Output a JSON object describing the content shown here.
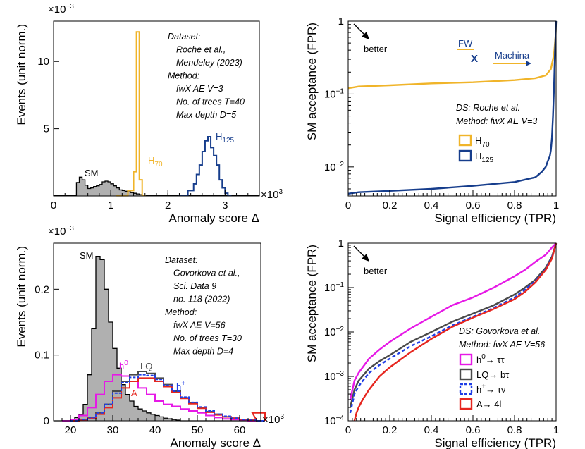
{
  "chart_data": [
    {
      "type": "histogram",
      "panel": "top-left",
      "exponent_label": "×10",
      "exponent_sup": "−3",
      "xscale_label": "×10",
      "xscale_sup": "3",
      "xlabel": "Anomaly score Δ",
      "ylabel": "Events (unit norm.)",
      "xlim": [
        0,
        3.6
      ],
      "ylim": [
        0,
        13
      ],
      "xticks": [
        "0",
        "1",
        "2",
        "3"
      ],
      "yticks": [
        "5",
        "10"
      ],
      "xtick_values": [
        0,
        1,
        2,
        3
      ],
      "ytick_values": [
        5,
        10
      ],
      "annotations": [
        "Dataset:",
        "Roche et al.,",
        "Mendeley (2023)",
        "Method:",
        "fwX AE V=3",
        "No. of trees T=40",
        "Max depth D=5"
      ],
      "series": [
        {
          "name": "SM",
          "label": "SM",
          "color": "#000000",
          "fill": "#b0b0b0",
          "edges": [
            0.0,
            0.4,
            0.45,
            0.5,
            0.55,
            0.6,
            0.65,
            0.7,
            0.75,
            0.8,
            0.85,
            0.9,
            0.95,
            1.0,
            1.05,
            1.1,
            1.15,
            1.2,
            1.25,
            1.3,
            1.35,
            1.4,
            1.45,
            1.5,
            1.55,
            3.6
          ],
          "values": [
            0.05,
            1.0,
            1.4,
            1.2,
            0.8,
            0.55,
            0.6,
            0.7,
            0.75,
            0.85,
            1.05,
            1.1,
            1.05,
            0.9,
            0.75,
            0.6,
            0.45,
            0.4,
            0.35,
            0.3,
            0.25,
            0.2,
            0.15,
            0.1,
            0.02
          ]
        },
        {
          "name": "H70",
          "label": "H",
          "sub": "70",
          "color": "#f0b429",
          "edges": [
            1.1,
            1.3,
            1.4,
            1.45,
            1.5,
            1.55,
            1.6
          ],
          "values": [
            0.02,
            0.4,
            1.8,
            12.2,
            1.2,
            0.05
          ]
        },
        {
          "name": "H125",
          "label": "H",
          "sub": "125",
          "color": "#163d8c",
          "edges": [
            2.2,
            2.35,
            2.45,
            2.5,
            2.55,
            2.6,
            2.65,
            2.7,
            2.75,
            2.8,
            2.85,
            2.9,
            2.95,
            3.0,
            3.05,
            3.1
          ],
          "values": [
            0.05,
            0.4,
            0.9,
            1.6,
            2.3,
            3.3,
            4.1,
            4.4,
            3.6,
            3.0,
            2.3,
            1.2,
            0.6,
            0.2,
            0.05
          ]
        }
      ]
    },
    {
      "type": "line",
      "panel": "top-right",
      "xlabel": "Signal efficiency (TPR)",
      "ylabel": "SM acceptance (FPR)",
      "yscale": "log",
      "xlim": [
        0,
        1
      ],
      "ylim": [
        0.004,
        1
      ],
      "xticks": [
        "0",
        "0.2",
        "0.4",
        "0.6",
        "0.8",
        "1"
      ],
      "yticks": [
        "10",
        "10",
        "1"
      ],
      "ytick_sups": [
        "−2",
        "−1",
        ""
      ],
      "ytick_values": [
        0.01,
        0.1,
        1
      ],
      "arrow_label": "better",
      "logo_fw": "FW",
      "logo_x": "X",
      "logo_machina": "Machina",
      "legend_title_1": "DS: Roche et al.",
      "legend_title_2": "Method: fwX AE V=3",
      "series": [
        {
          "name": "H70",
          "label": "H",
          "sub": "70",
          "color": "#f0b429",
          "x": [
            0.0,
            0.05,
            0.2,
            0.4,
            0.6,
            0.8,
            0.9,
            0.95,
            0.975,
            0.99,
            0.997,
            1.0
          ],
          "y": [
            0.12,
            0.127,
            0.132,
            0.14,
            0.145,
            0.155,
            0.165,
            0.18,
            0.22,
            0.35,
            0.6,
            1.0
          ]
        },
        {
          "name": "H125",
          "label": "H",
          "sub": "125",
          "color": "#163d8c",
          "x": [
            0.0,
            0.05,
            0.2,
            0.4,
            0.6,
            0.8,
            0.9,
            0.93,
            0.95,
            0.96,
            0.97,
            0.975,
            0.98,
            0.985,
            0.99,
            0.995,
            1.0
          ],
          "y": [
            0.0043,
            0.0045,
            0.0047,
            0.005,
            0.0055,
            0.0062,
            0.0072,
            0.0085,
            0.01,
            0.012,
            0.014,
            0.017,
            0.025,
            0.05,
            0.12,
            0.4,
            1.0
          ]
        }
      ]
    },
    {
      "type": "histogram",
      "panel": "bottom-left",
      "exponent_label": "×10",
      "exponent_sup": "−3",
      "xscale_label": "×10",
      "xscale_sup": "3",
      "xlabel": "Anomaly score Δ",
      "ylabel": "Events (unit norm.)",
      "xlim": [
        16,
        65
      ],
      "ylim": [
        0,
        0.27
      ],
      "xticks": [
        "20",
        "30",
        "40",
        "50",
        "60"
      ],
      "yticks": [
        "0",
        "0.1",
        "0.2"
      ],
      "xtick_values": [
        20,
        30,
        40,
        50,
        60
      ],
      "ytick_values": [
        0,
        0.1,
        0.2
      ],
      "annotations": [
        "Dataset:",
        "Govorkova et al.,",
        "Sci. Data 9",
        "no. 118 (2022)",
        "Method:",
        "fwX AE V=56",
        "No. of trees T=30",
        "Max depth D=4"
      ],
      "series": [
        {
          "name": "SM",
          "label": "SM",
          "color": "#000000",
          "fill": "#b0b0b0",
          "edges": [
            16,
            21,
            22,
            23,
            24,
            25,
            26,
            27,
            28,
            29,
            30,
            31,
            32,
            33,
            34,
            35,
            36,
            37,
            38,
            39,
            40,
            41,
            42,
            43,
            44,
            45,
            46,
            65
          ],
          "values": [
            0.0,
            0.005,
            0.01,
            0.025,
            0.07,
            0.14,
            0.25,
            0.245,
            0.2,
            0.15,
            0.11,
            0.08,
            0.055,
            0.04,
            0.03,
            0.022,
            0.018,
            0.015,
            0.012,
            0.01,
            0.008,
            0.006,
            0.004,
            0.003,
            0.002,
            0.001,
            0.0
          ]
        },
        {
          "name": "h0",
          "label": "h",
          "sup": "0",
          "color": "#e619e6",
          "x": [
            18,
            20,
            22,
            24,
            26,
            28,
            30,
            32,
            34,
            36,
            38,
            40,
            42,
            44,
            46,
            48,
            50,
            52,
            54,
            56,
            58,
            60,
            62
          ],
          "y": [
            0.0,
            0.002,
            0.008,
            0.02,
            0.04,
            0.06,
            0.07,
            0.068,
            0.06,
            0.05,
            0.04,
            0.03,
            0.025,
            0.022,
            0.018,
            0.015,
            0.012,
            0.008,
            0.005,
            0.003,
            0.002,
            0.001,
            0.0
          ]
        },
        {
          "name": "LQ",
          "label": "LQ",
          "color": "#4a4a4a",
          "x": [
            20,
            22,
            24,
            26,
            28,
            30,
            32,
            34,
            36,
            38,
            40,
            42,
            44,
            46,
            48,
            50,
            52,
            54,
            56,
            58,
            60,
            62,
            64
          ],
          "y": [
            0.0,
            0.002,
            0.005,
            0.012,
            0.025,
            0.045,
            0.06,
            0.07,
            0.075,
            0.072,
            0.065,
            0.055,
            0.045,
            0.035,
            0.027,
            0.02,
            0.014,
            0.01,
            0.006,
            0.004,
            0.002,
            0.001,
            0.0
          ]
        },
        {
          "name": "A",
          "label": "A",
          "color": "#e6261f",
          "x": [
            20,
            22,
            24,
            26,
            28,
            30,
            32,
            34,
            36,
            38,
            40,
            42,
            44,
            46,
            48,
            50,
            52,
            54,
            56,
            58,
            60,
            62,
            63,
            64
          ],
          "y": [
            0.0,
            0.001,
            0.004,
            0.01,
            0.02,
            0.035,
            0.05,
            0.06,
            0.065,
            0.065,
            0.06,
            0.052,
            0.043,
            0.034,
            0.026,
            0.019,
            0.013,
            0.009,
            0.006,
            0.004,
            0.002,
            0.001,
            0.012,
            0.012
          ]
        },
        {
          "name": "h+",
          "label": "h",
          "sup": "+",
          "color": "#1f3ee6",
          "x": [
            20,
            22,
            24,
            26,
            28,
            30,
            32,
            34,
            36,
            38,
            40,
            42,
            44,
            46,
            48,
            50,
            52,
            54,
            56,
            58,
            60,
            62,
            64
          ],
          "y": [
            0.0,
            0.002,
            0.005,
            0.012,
            0.025,
            0.042,
            0.058,
            0.066,
            0.07,
            0.069,
            0.063,
            0.054,
            0.045,
            0.036,
            0.028,
            0.021,
            0.015,
            0.01,
            0.007,
            0.004,
            0.002,
            0.001,
            0.0
          ]
        }
      ]
    },
    {
      "type": "line",
      "panel": "bottom-right",
      "xlabel": "Signal efficiency (TPR)",
      "ylabel": "SM acceptance (FPR)",
      "yscale": "log",
      "xlim": [
        0,
        1
      ],
      "ylim": [
        0.0001,
        1
      ],
      "xticks": [
        "0",
        "0.2",
        "0.4",
        "0.6",
        "0.8",
        "1"
      ],
      "yticks": [
        "10",
        "10",
        "10",
        "10",
        "1"
      ],
      "ytick_sups": [
        "−4",
        "−3",
        "−2",
        "−1",
        ""
      ],
      "ytick_values": [
        0.0001,
        0.001,
        0.01,
        0.1,
        1
      ],
      "arrow_label": "better",
      "legend_title_1": "DS: Govorkova et al.",
      "legend_title_2": "Method: fwX AE V=56",
      "series": [
        {
          "name": "h0",
          "label": "h",
          "sup": "0",
          "tail": "→ ττ",
          "color": "#e619e6",
          "x": [
            0.01,
            0.03,
            0.05,
            0.1,
            0.15,
            0.2,
            0.3,
            0.4,
            0.5,
            0.6,
            0.7,
            0.8,
            0.85,
            0.9,
            0.95,
            0.98,
            1.0
          ],
          "y": [
            0.0003,
            0.0008,
            0.0012,
            0.0025,
            0.004,
            0.006,
            0.012,
            0.022,
            0.04,
            0.06,
            0.1,
            0.18,
            0.25,
            0.38,
            0.55,
            0.8,
            1.0
          ]
        },
        {
          "name": "LQ",
          "label": "LQ",
          "tail": "→ bτ",
          "color": "#4a4a4a",
          "x": [
            0.01,
            0.03,
            0.05,
            0.1,
            0.15,
            0.2,
            0.3,
            0.4,
            0.5,
            0.6,
            0.7,
            0.8,
            0.85,
            0.9,
            0.95,
            0.98,
            1.0
          ],
          "y": [
            0.0002,
            0.0005,
            0.0008,
            0.0015,
            0.0022,
            0.003,
            0.006,
            0.01,
            0.017,
            0.026,
            0.04,
            0.07,
            0.1,
            0.15,
            0.28,
            0.5,
            1.0
          ]
        },
        {
          "name": "h+",
          "label": "h",
          "sup": "+",
          "tail": "→ τν",
          "color": "#1f3ee6",
          "x": [
            0.01,
            0.03,
            0.05,
            0.1,
            0.15,
            0.2,
            0.3,
            0.4,
            0.5,
            0.6,
            0.7,
            0.8,
            0.85,
            0.9,
            0.95,
            0.98,
            1.0
          ],
          "y": [
            0.00015,
            0.0004,
            0.0006,
            0.0012,
            0.0018,
            0.0025,
            0.0048,
            0.008,
            0.014,
            0.022,
            0.035,
            0.06,
            0.09,
            0.14,
            0.26,
            0.48,
            1.0
          ]
        },
        {
          "name": "A",
          "label": "A",
          "tail": "→ 4l",
          "color": "#e6261f",
          "x": [
            0.03,
            0.04,
            0.05,
            0.07,
            0.1,
            0.15,
            0.2,
            0.3,
            0.4,
            0.5,
            0.6,
            0.7,
            0.8,
            0.85,
            0.9,
            0.95,
            0.98,
            1.0
          ],
          "y": [
            0.0001,
            0.00015,
            0.0002,
            0.0003,
            0.0005,
            0.001,
            0.0016,
            0.0035,
            0.007,
            0.013,
            0.021,
            0.033,
            0.055,
            0.08,
            0.13,
            0.25,
            0.45,
            1.0
          ]
        }
      ]
    }
  ]
}
